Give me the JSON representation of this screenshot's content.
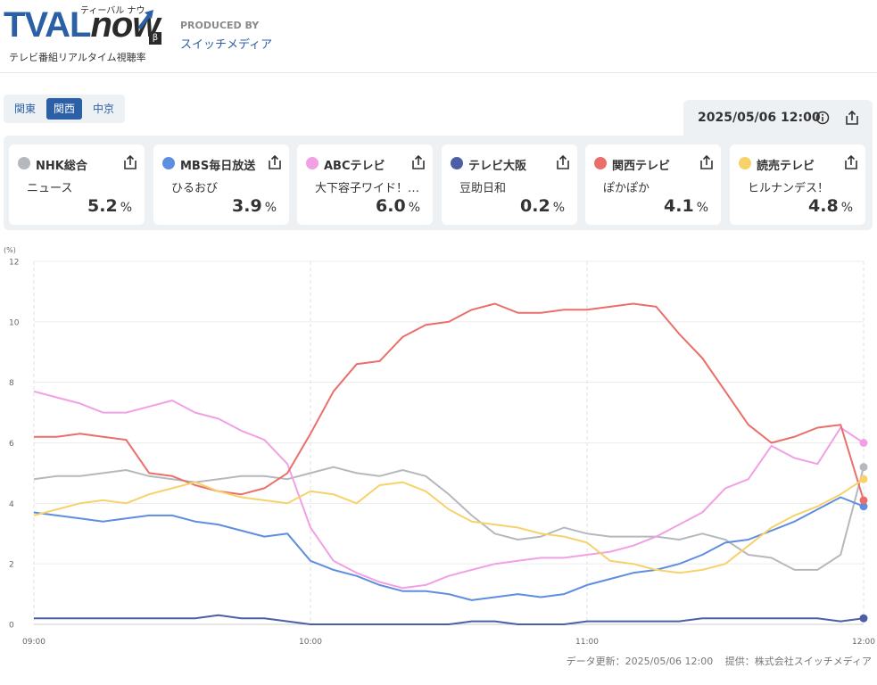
{
  "brand": {
    "logo_main": "TVAL",
    "logo_now": "now",
    "logo_kana": "ティーバル ナウ",
    "logo_beta": "β",
    "subtitle": "テレビ番組リアルタイム視聴率",
    "produced_label": "PRODUCED BY",
    "producer": "スイッチメディア"
  },
  "regions": [
    {
      "label": "関東",
      "active": false
    },
    {
      "label": "関西",
      "active": true
    },
    {
      "label": "中京",
      "active": false
    }
  ],
  "datetime": "2025/05/06 12:00",
  "icons": {
    "info": "info-icon",
    "share": "share-icon"
  },
  "channels": [
    {
      "name": "NHK総合",
      "program": "ニュース",
      "value": "5.2",
      "unit": "%",
      "color": "#b5b9bd"
    },
    {
      "name": "MBS毎日放送",
      "program": "ひるおび",
      "value": "3.9",
      "unit": "%",
      "color": "#5f8de0"
    },
    {
      "name": "ABCテレビ",
      "program": "大下容子ワイド！スクランブル",
      "value": "6.0",
      "unit": "%",
      "color": "#f2a0e4"
    },
    {
      "name": "テレビ大阪",
      "program": "豆助日和",
      "value": "0.2",
      "unit": "%",
      "color": "#4c5fa6"
    },
    {
      "name": "関西テレビ",
      "program": "ぽかぽか",
      "value": "4.1",
      "unit": "%",
      "color": "#ea6f6a"
    },
    {
      "name": "読売テレビ",
      "program": "ヒルナンデス！",
      "value": "4.8",
      "unit": "%",
      "color": "#f7d26b"
    }
  ],
  "chart_data": {
    "type": "line",
    "unit_label": "(%)",
    "ylim": [
      0,
      12
    ],
    "yticks": [
      "0",
      "2",
      "4",
      "6",
      "8",
      "10",
      "12"
    ],
    "xticks": [
      "09:00",
      "10:00",
      "11:00",
      "12:00"
    ],
    "x_minutes": [
      0,
      5,
      10,
      15,
      20,
      25,
      30,
      35,
      40,
      45,
      50,
      55,
      60,
      65,
      70,
      75,
      80,
      85,
      90,
      95,
      100,
      105,
      110,
      115,
      120,
      125,
      130,
      135,
      140,
      145,
      150,
      155,
      160,
      165,
      170,
      175,
      180
    ],
    "grid": true,
    "series": [
      {
        "name": "NHK総合",
        "color": "#b5b9bd",
        "values": [
          4.8,
          4.9,
          4.9,
          5.0,
          5.1,
          4.9,
          4.8,
          4.7,
          4.8,
          4.9,
          4.9,
          4.8,
          5.0,
          5.2,
          5.0,
          4.9,
          5.1,
          4.9,
          4.3,
          3.6,
          3.0,
          2.8,
          2.9,
          3.2,
          3.0,
          2.9,
          2.9,
          2.9,
          2.8,
          3.0,
          2.8,
          2.3,
          2.2,
          1.8,
          1.8,
          2.3,
          5.2
        ]
      },
      {
        "name": "MBS毎日放送",
        "color": "#5f8de0",
        "values": [
          3.7,
          3.6,
          3.5,
          3.4,
          3.5,
          3.6,
          3.6,
          3.4,
          3.3,
          3.1,
          2.9,
          3.0,
          2.1,
          1.8,
          1.6,
          1.3,
          1.1,
          1.1,
          1.0,
          0.8,
          0.9,
          1.0,
          0.9,
          1.0,
          1.3,
          1.5,
          1.7,
          1.8,
          2.0,
          2.3,
          2.7,
          2.8,
          3.1,
          3.4,
          3.8,
          4.2,
          3.9
        ]
      },
      {
        "name": "ABCテレビ",
        "color": "#f2a0e4",
        "values": [
          7.7,
          7.5,
          7.3,
          7.0,
          7.0,
          7.2,
          7.4,
          7.0,
          6.8,
          6.4,
          6.1,
          5.3,
          3.2,
          2.1,
          1.7,
          1.4,
          1.2,
          1.3,
          1.6,
          1.8,
          2.0,
          2.1,
          2.2,
          2.2,
          2.3,
          2.4,
          2.6,
          2.9,
          3.3,
          3.7,
          4.5,
          4.8,
          5.9,
          5.5,
          5.3,
          6.5,
          6.0
        ]
      },
      {
        "name": "テレビ大阪",
        "color": "#4c5fa6",
        "values": [
          0.2,
          0.2,
          0.2,
          0.2,
          0.2,
          0.2,
          0.2,
          0.2,
          0.3,
          0.2,
          0.2,
          0.1,
          0.0,
          0.0,
          0.0,
          0.0,
          0.0,
          0.0,
          0.0,
          0.1,
          0.1,
          0.0,
          0.0,
          0.0,
          0.1,
          0.1,
          0.1,
          0.1,
          0.1,
          0.2,
          0.2,
          0.2,
          0.2,
          0.2,
          0.2,
          0.1,
          0.2
        ]
      },
      {
        "name": "関西テレビ",
        "color": "#ea6f6a",
        "values": [
          6.2,
          6.2,
          6.3,
          6.2,
          6.1,
          5.0,
          4.9,
          4.6,
          4.4,
          4.3,
          4.5,
          5.0,
          6.3,
          7.7,
          8.6,
          8.7,
          9.5,
          9.9,
          10.0,
          10.4,
          10.6,
          10.3,
          10.3,
          10.4,
          10.4,
          10.5,
          10.6,
          10.5,
          9.6,
          8.8,
          7.7,
          6.6,
          6.0,
          6.2,
          6.5,
          6.6,
          4.1
        ]
      },
      {
        "name": "読売テレビ",
        "color": "#f7d26b",
        "values": [
          3.6,
          3.8,
          4.0,
          4.1,
          4.0,
          4.3,
          4.5,
          4.7,
          4.4,
          4.2,
          4.1,
          4.0,
          4.4,
          4.3,
          4.0,
          4.6,
          4.7,
          4.4,
          3.8,
          3.4,
          3.3,
          3.2,
          3.0,
          2.9,
          2.7,
          2.1,
          2.0,
          1.8,
          1.7,
          1.8,
          2.0,
          2.6,
          3.2,
          3.6,
          3.9,
          4.3,
          4.8
        ]
      }
    ]
  },
  "footer": {
    "updated": "データ更新：2025/05/06 12:00",
    "provider": "提供：株式会社スイッチメディア"
  }
}
